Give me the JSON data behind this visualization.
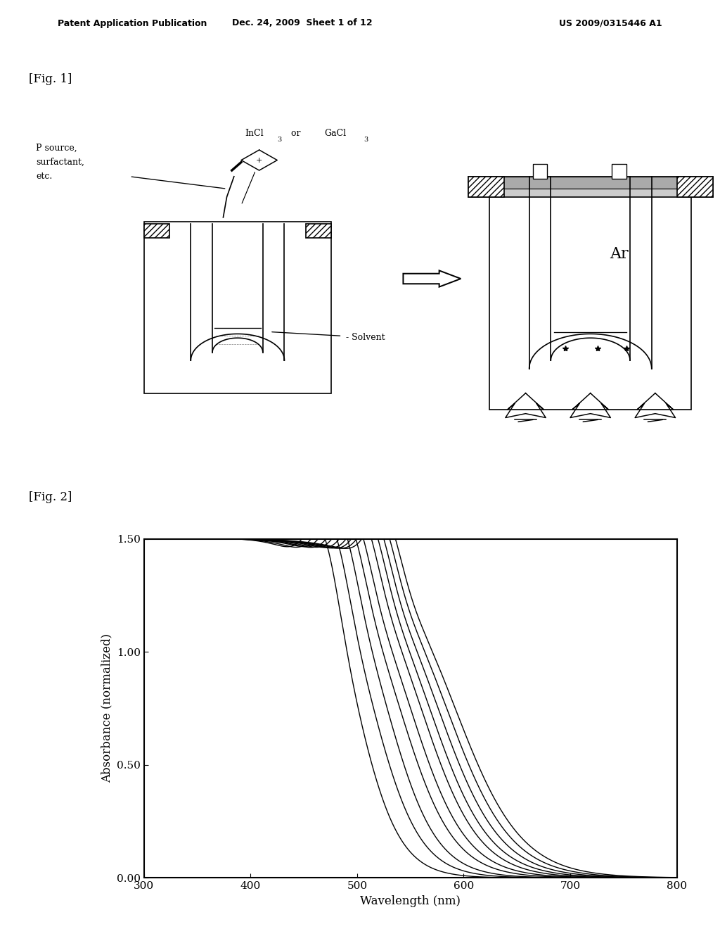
{
  "page_header_left": "Patent Application Publication",
  "page_header_mid": "Dec. 24, 2009  Sheet 1 of 12",
  "page_header_right": "US 2009/0315446 A1",
  "fig1_label": "[Fig. 1]",
  "fig2_label": "[Fig. 2]",
  "fig2": {
    "xlabel": "Wavelength (nm)",
    "ylabel": "Absorbance (normalized)",
    "xlim": [
      300,
      800
    ],
    "ylim": [
      0.0,
      1.5
    ],
    "ytick_vals": [
      0.0,
      0.5,
      1.0,
      1.5
    ],
    "ytick_labels": [
      "0.00",
      "0.50",
      "1.00",
      "1.50"
    ],
    "xtick_vals": [
      300,
      400,
      500,
      600,
      700,
      800
    ],
    "xtick_labels": [
      "300",
      "400",
      "500",
      "600",
      "700",
      "800"
    ],
    "num_curves": 10,
    "sigmoid_centers": [
      500,
      515,
      528,
      540,
      550,
      560,
      568,
      576,
      584,
      592
    ],
    "sigmoid_scales": [
      20,
      22,
      23,
      25,
      26,
      27,
      28,
      29,
      30,
      31
    ],
    "shoulder_centers": [
      468,
      477,
      485,
      492,
      498,
      505,
      511,
      516,
      521,
      526
    ],
    "shoulder_widths": [
      14,
      14,
      14,
      14,
      14,
      14,
      14,
      14,
      14,
      14
    ],
    "shoulder_amps": [
      0.18,
      0.18,
      0.18,
      0.18,
      0.18,
      0.18,
      0.18,
      0.18,
      0.18,
      0.18
    ],
    "plateau": 1.5,
    "line_color": "#000000",
    "line_width": 1.0
  }
}
